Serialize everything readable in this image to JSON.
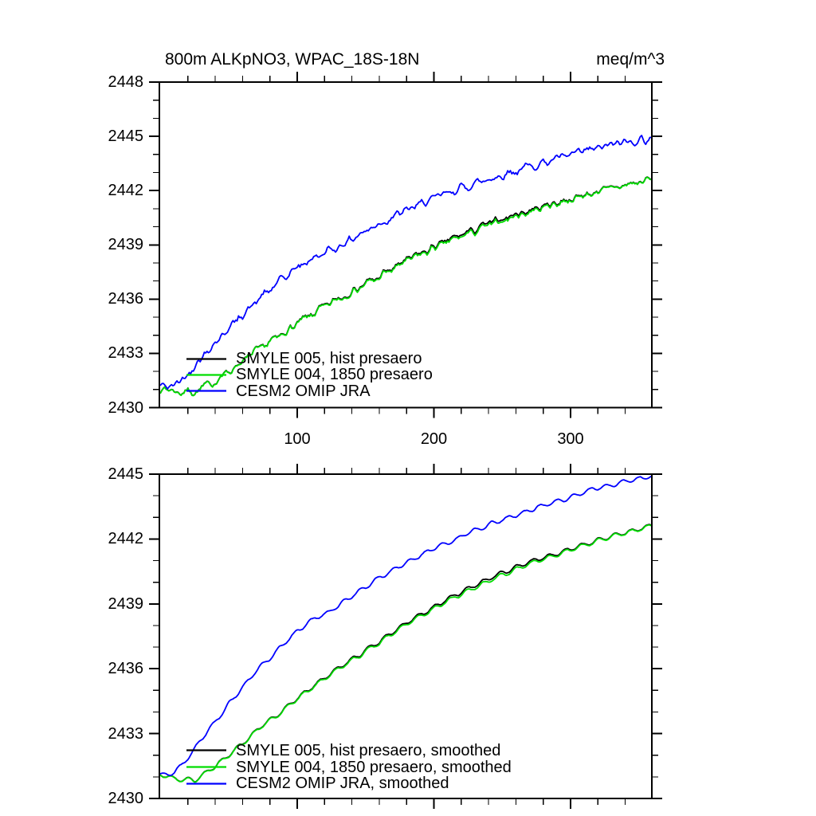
{
  "figure": {
    "background": "#ffffff",
    "axis_color": "#000000"
  },
  "chart_data": [
    {
      "type": "line",
      "title": "800m ALKpNO3, WPAC_18S-18N",
      "units": "meq/m^3",
      "x_axis": {
        "min": 0,
        "max": 359,
        "major_ticks": [
          100,
          200,
          300
        ],
        "tick_labels": [
          "100",
          "200",
          "300"
        ],
        "minor_tick_step": 20,
        "labels_visible": true
      },
      "y_axis": {
        "min": 2430,
        "max": 2448,
        "major_ticks": [
          2430,
          2433,
          2436,
          2439,
          2442,
          2445,
          2448
        ],
        "tick_labels": [
          "2430",
          "2433",
          "2436",
          "2439",
          "2442",
          "2445",
          "2448"
        ],
        "minor_tick_step": 1
      },
      "legend": [
        "SMYLE 005, hist presaero",
        "SMYLE 004, 1850 presaero",
        "CESM2 OMIP JRA"
      ],
      "series": [
        {
          "key": "smyle005",
          "name": "SMYLE 005, hist presaero",
          "color": "#000000",
          "trend_x": [
            0,
            5,
            10,
            15,
            20,
            25,
            30,
            40,
            50,
            60,
            70,
            80,
            90,
            100,
            110,
            120,
            130,
            140,
            150,
            160,
            170,
            180,
            190,
            200,
            215,
            230,
            245,
            260,
            275,
            290,
            305,
            320,
            335,
            350,
            359
          ],
          "trend_y": [
            2431.1,
            2431.0,
            2430.9,
            2430.85,
            2430.9,
            2430.85,
            2431.05,
            2431.45,
            2432.0,
            2432.55,
            2433.1,
            2433.6,
            2434.1,
            2434.6,
            2435.1,
            2435.55,
            2436.0,
            2436.4,
            2436.8,
            2437.2,
            2437.65,
            2438.1,
            2438.45,
            2438.8,
            2439.3,
            2439.75,
            2440.2,
            2440.6,
            2440.95,
            2441.3,
            2441.6,
            2441.95,
            2442.2,
            2442.45,
            2442.6
          ],
          "delta_x": [
            0,
            80,
            150,
            200,
            220,
            240,
            260,
            280,
            300,
            330,
            359
          ],
          "delta_y": [
            0.01,
            0.02,
            0.05,
            0.07,
            0.1,
            0.11,
            0.1,
            0.07,
            0.04,
            0.02,
            0.02
          ],
          "wiggle_amp": 0.05,
          "wiggle_period": 12,
          "wiggle_phase": 3.5,
          "noise_amp": 0.3,
          "noise_smooth": 2,
          "seed": 7
        },
        {
          "key": "smyle004",
          "name": "SMYLE 004, 1850 presaero",
          "color": "#00dd00",
          "trend_x": [
            0,
            5,
            10,
            15,
            20,
            25,
            30,
            40,
            50,
            60,
            70,
            80,
            90,
            100,
            110,
            120,
            130,
            140,
            150,
            160,
            170,
            180,
            190,
            200,
            215,
            230,
            245,
            260,
            275,
            290,
            305,
            320,
            335,
            350,
            359
          ],
          "trend_y": [
            2431.1,
            2431.0,
            2430.9,
            2430.85,
            2430.9,
            2430.85,
            2431.05,
            2431.45,
            2432.0,
            2432.55,
            2433.1,
            2433.6,
            2434.1,
            2434.6,
            2435.1,
            2435.55,
            2436.0,
            2436.4,
            2436.8,
            2437.2,
            2437.65,
            2438.1,
            2438.45,
            2438.8,
            2439.3,
            2439.75,
            2440.2,
            2440.6,
            2440.95,
            2441.3,
            2441.6,
            2441.95,
            2442.2,
            2442.45,
            2442.6
          ],
          "delta_x": [
            0,
            359
          ],
          "delta_y": [
            0,
            0
          ],
          "wiggle_amp": 0.05,
          "wiggle_period": 12,
          "wiggle_phase": 3.5,
          "noise_amp": 0.3,
          "noise_smooth": 2,
          "seed": 7
        },
        {
          "key": "cesm2",
          "name": "CESM2 OMIP JRA",
          "color": "#0000ff",
          "trend_x": [
            0,
            5,
            10,
            15,
            20,
            25,
            30,
            40,
            50,
            60,
            70,
            80,
            90,
            100,
            110,
            120,
            130,
            140,
            150,
            160,
            170,
            180,
            190,
            200,
            215,
            230,
            245,
            260,
            275,
            290,
            305,
            320,
            335,
            350,
            359
          ],
          "trend_y": [
            2431.2,
            2431.15,
            2431.25,
            2431.5,
            2431.9,
            2432.35,
            2432.8,
            2433.6,
            2434.4,
            2435.15,
            2435.85,
            2436.5,
            2437.15,
            2437.75,
            2438.2,
            2438.55,
            2438.9,
            2439.35,
            2439.75,
            2440.2,
            2440.55,
            2440.9,
            2441.25,
            2441.55,
            2442.0,
            2442.4,
            2442.75,
            2443.1,
            2443.45,
            2443.75,
            2444.05,
            2444.35,
            2444.6,
            2444.8,
            2444.9
          ],
          "delta_x": [
            0,
            359
          ],
          "delta_y": [
            0,
            0
          ],
          "wiggle_amp": 0.05,
          "wiggle_period": 12,
          "wiggle_phase": 0.5,
          "noise_amp": 0.35,
          "noise_smooth": 2,
          "seed": 42
        }
      ]
    },
    {
      "type": "line",
      "title": "",
      "units": "",
      "x_axis": {
        "min": 0,
        "max": 359,
        "major_ticks": [
          100,
          200,
          300
        ],
        "tick_labels": [],
        "minor_tick_step": 20,
        "labels_visible": false
      },
      "y_axis": {
        "min": 2430,
        "max": 2445,
        "major_ticks": [
          2430,
          2433,
          2436,
          2439,
          2442,
          2445
        ],
        "tick_labels": [
          "2430",
          "2433",
          "2436",
          "2439",
          "2442",
          "2445"
        ],
        "minor_tick_step": 1
      },
      "legend": [
        "SMYLE 005, hist presaero, smoothed",
        "SMYLE 004, 1850 presaero, smoothed",
        "CESM2 OMIP JRA, smoothed"
      ],
      "series": [
        {
          "key": "smyle005-smoothed",
          "name": "SMYLE 005, hist presaero, smoothed",
          "color": "#000000",
          "trend_x": [
            0,
            5,
            10,
            15,
            20,
            25,
            30,
            40,
            50,
            60,
            70,
            80,
            90,
            100,
            110,
            120,
            130,
            140,
            150,
            160,
            170,
            180,
            190,
            200,
            215,
            230,
            245,
            260,
            275,
            290,
            305,
            320,
            335,
            350,
            359
          ],
          "trend_y": [
            2431.1,
            2431.0,
            2430.9,
            2430.85,
            2430.9,
            2430.85,
            2431.05,
            2431.45,
            2432.0,
            2432.55,
            2433.1,
            2433.6,
            2434.1,
            2434.6,
            2435.1,
            2435.55,
            2436.0,
            2436.4,
            2436.8,
            2437.2,
            2437.65,
            2438.1,
            2438.45,
            2438.8,
            2439.3,
            2439.75,
            2440.2,
            2440.6,
            2440.95,
            2441.3,
            2441.6,
            2441.95,
            2442.2,
            2442.45,
            2442.6
          ],
          "delta_x": [
            0,
            80,
            150,
            200,
            220,
            240,
            260,
            280,
            300,
            330,
            359
          ],
          "delta_y": [
            0.01,
            0.02,
            0.05,
            0.07,
            0.1,
            0.11,
            0.1,
            0.07,
            0.04,
            0.02,
            0.02
          ],
          "wiggle_amp": 0.09,
          "wiggle_period": 12,
          "wiggle_phase": 3.5,
          "noise_amp": 0.15,
          "noise_smooth": 11,
          "seed": 5
        },
        {
          "key": "smyle004-smoothed",
          "name": "SMYLE 004, 1850 presaero, smoothed",
          "color": "#00dd00",
          "trend_x": [
            0,
            5,
            10,
            15,
            20,
            25,
            30,
            40,
            50,
            60,
            70,
            80,
            90,
            100,
            110,
            120,
            130,
            140,
            150,
            160,
            170,
            180,
            190,
            200,
            215,
            230,
            245,
            260,
            275,
            290,
            305,
            320,
            335,
            350,
            359
          ],
          "trend_y": [
            2431.1,
            2431.0,
            2430.9,
            2430.85,
            2430.9,
            2430.85,
            2431.05,
            2431.45,
            2432.0,
            2432.55,
            2433.1,
            2433.6,
            2434.1,
            2434.6,
            2435.1,
            2435.55,
            2436.0,
            2436.4,
            2436.8,
            2437.2,
            2437.65,
            2438.1,
            2438.45,
            2438.8,
            2439.3,
            2439.75,
            2440.2,
            2440.6,
            2440.95,
            2441.3,
            2441.6,
            2441.95,
            2442.2,
            2442.45,
            2442.6
          ],
          "delta_x": [
            0,
            359
          ],
          "delta_y": [
            0,
            0
          ],
          "wiggle_amp": 0.09,
          "wiggle_period": 12,
          "wiggle_phase": 3.5,
          "noise_amp": 0.15,
          "noise_smooth": 11,
          "seed": 5
        },
        {
          "key": "cesm2-smoothed",
          "name": "CESM2 OMIP JRA, smoothed",
          "color": "#0000ff",
          "trend_x": [
            0,
            5,
            10,
            15,
            20,
            25,
            30,
            40,
            50,
            60,
            70,
            80,
            90,
            100,
            110,
            120,
            130,
            140,
            150,
            160,
            170,
            180,
            190,
            200,
            215,
            230,
            245,
            260,
            275,
            290,
            305,
            320,
            335,
            350,
            359
          ],
          "trend_y": [
            2431.2,
            2431.15,
            2431.25,
            2431.5,
            2431.9,
            2432.35,
            2432.8,
            2433.6,
            2434.4,
            2435.15,
            2435.85,
            2436.5,
            2437.15,
            2437.75,
            2438.2,
            2438.55,
            2438.9,
            2439.35,
            2439.75,
            2440.2,
            2440.55,
            2440.9,
            2441.25,
            2441.55,
            2442.0,
            2442.4,
            2442.75,
            2443.1,
            2443.45,
            2443.75,
            2444.05,
            2444.35,
            2444.6,
            2444.8,
            2444.9
          ],
          "delta_x": [
            0,
            359
          ],
          "delta_y": [
            0,
            0
          ],
          "wiggle_amp": 0.09,
          "wiggle_period": 12,
          "wiggle_phase": 0.5,
          "noise_amp": 0.15,
          "noise_smooth": 11,
          "seed": 13
        }
      ]
    }
  ]
}
